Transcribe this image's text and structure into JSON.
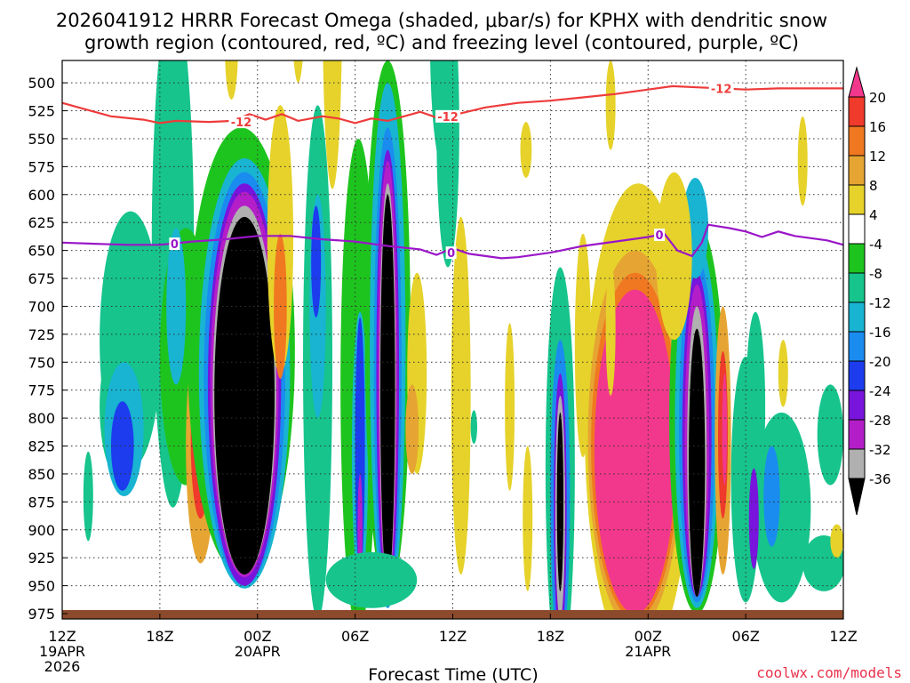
{
  "title_line1": "2026041912 HRRR Forecast Omega (shaded, μbar/s) for KPHX with dendritic snow",
  "title_line2": "growth region (contoured, red, ºC) and freezing level (contoured, purple, ºC)",
  "xlabel": "Forecast Time (UTC)",
  "credit": "coolwx.com/models",
  "colors": {
    "dgz": "#ee3b3b",
    "freezing": "#9a16c8",
    "ground": "#8b4a2b"
  },
  "chart_data": {
    "type": "heatmap",
    "x_unit": "forecast hour",
    "x_range": [
      0,
      48
    ],
    "y_unit": "hPa",
    "y_range": [
      975,
      480
    ],
    "y_ticks": [
      500,
      525,
      550,
      575,
      600,
      625,
      650,
      675,
      700,
      725,
      750,
      775,
      800,
      825,
      850,
      875,
      900,
      925,
      950,
      975
    ],
    "x_ticks": [
      {
        "h": 0,
        "l1": "12Z",
        "l2": "19APR",
        "l3": "2026"
      },
      {
        "h": 6,
        "l1": "18Z",
        "l2": "",
        "l3": ""
      },
      {
        "h": 12,
        "l1": "00Z",
        "l2": "20APR",
        "l3": ""
      },
      {
        "h": 18,
        "l1": "06Z",
        "l2": "",
        "l3": ""
      },
      {
        "h": 24,
        "l1": "12Z",
        "l2": "",
        "l3": ""
      },
      {
        "h": 30,
        "l1": "18Z",
        "l2": "",
        "l3": ""
      },
      {
        "h": 36,
        "l1": "00Z",
        "l2": "21APR",
        "l3": ""
      },
      {
        "h": 42,
        "l1": "06Z",
        "l2": "",
        "l3": ""
      },
      {
        "h": 48,
        "l1": "12Z",
        "l2": "",
        "l3": ""
      }
    ],
    "colorbar": {
      "labels": [
        "20",
        "16",
        "12",
        "8",
        "4",
        "-4",
        "-8",
        "-12",
        "-16",
        "-20",
        "-24",
        "-28",
        "-32",
        "-36"
      ],
      "colors": [
        "#f2388c",
        "#ef3a2c",
        "#f07820",
        "#e6a532",
        "#e6d22a",
        "#ffffff",
        "#1ec41e",
        "#16c48c",
        "#18b4d2",
        "#1a8cf0",
        "#1c3cee",
        "#7814dc",
        "#b41ec8",
        "#b0b0b0",
        "#000000"
      ]
    },
    "dgz_contour": {
      "label": "-12",
      "points": [
        [
          0,
          518
        ],
        [
          1.5,
          524
        ],
        [
          3,
          530
        ],
        [
          5,
          533
        ],
        [
          6,
          536
        ],
        [
          7,
          534
        ],
        [
          9,
          535
        ],
        [
          10.5,
          534
        ],
        [
          11.5,
          528
        ],
        [
          12.5,
          533
        ],
        [
          13.5,
          528
        ],
        [
          14.5,
          534
        ],
        [
          16,
          530
        ],
        [
          17,
          532
        ],
        [
          18,
          536
        ],
        [
          19,
          532
        ],
        [
          20,
          534
        ],
        [
          21,
          530
        ],
        [
          22,
          526
        ],
        [
          23,
          531
        ],
        [
          24,
          529
        ],
        [
          26,
          522
        ],
        [
          28,
          518
        ],
        [
          30,
          516
        ],
        [
          32,
          513
        ],
        [
          34,
          510
        ],
        [
          36,
          506
        ],
        [
          37.5,
          503
        ],
        [
          39,
          504
        ],
        [
          40.5,
          505
        ],
        [
          42,
          506
        ],
        [
          44,
          505
        ],
        [
          46,
          505
        ],
        [
          48,
          505
        ]
      ],
      "label_positions": [
        [
          11,
          535
        ],
        [
          23.7,
          530
        ],
        [
          40.5,
          505
        ]
      ]
    },
    "freezing_contour": {
      "label": "0",
      "points": [
        [
          0,
          643
        ],
        [
          2,
          644
        ],
        [
          4,
          645
        ],
        [
          6,
          645
        ],
        [
          8,
          642
        ],
        [
          10,
          640
        ],
        [
          12,
          637
        ],
        [
          14,
          637
        ],
        [
          16,
          640
        ],
        [
          18,
          642
        ],
        [
          20,
          646
        ],
        [
          22,
          649
        ],
        [
          23,
          654
        ],
        [
          24,
          648
        ],
        [
          25,
          653
        ],
        [
          26,
          655
        ],
        [
          27,
          657
        ],
        [
          28,
          656
        ],
        [
          30,
          652
        ],
        [
          32,
          646
        ],
        [
          34,
          642
        ],
        [
          36,
          638
        ],
        [
          37,
          635
        ],
        [
          37.8,
          650
        ],
        [
          38.7,
          655
        ],
        [
          39.3,
          643
        ],
        [
          39.7,
          627
        ],
        [
          41,
          630
        ],
        [
          42,
          633
        ],
        [
          43,
          638
        ],
        [
          44,
          633
        ],
        [
          45,
          637
        ],
        [
          46,
          639
        ],
        [
          47,
          641
        ],
        [
          48,
          645
        ]
      ],
      "label_positions": [
        [
          6.9,
          644
        ],
        [
          23.9,
          652
        ],
        [
          36.7,
          636
        ]
      ]
    },
    "cells": [
      {
        "h": 4.2,
        "p": 730,
        "w": 1.9,
        "d": 230,
        "v": -8
      },
      {
        "h": 3.6,
        "p": 790,
        "w": 1.3,
        "d": 130,
        "v": -10
      },
      {
        "h": 6.8,
        "p": 650,
        "w": 1.3,
        "d": 460,
        "v": -8
      },
      {
        "h": 7.6,
        "p": 745,
        "w": 1.6,
        "d": 230,
        "v": -6
      },
      {
        "h": 3.8,
        "p": 810,
        "w": 1.2,
        "d": 120,
        "v": -14
      },
      {
        "h": 3.7,
        "p": 825,
        "w": 0.7,
        "d": 80,
        "v": -20
      },
      {
        "h": 7.0,
        "p": 700,
        "w": 0.6,
        "d": 140,
        "v": -14
      },
      {
        "h": 8.5,
        "p": 825,
        "w": 0.9,
        "d": 210,
        "v": 10
      },
      {
        "h": 8.5,
        "p": 820,
        "w": 0.6,
        "d": 140,
        "v": 16
      },
      {
        "h": 8.6,
        "p": 815,
        "w": 0.3,
        "d": 90,
        "v": 20
      },
      {
        "h": 11.0,
        "p": 740,
        "w": 3.3,
        "d": 400,
        "v": -6
      },
      {
        "h": 11.2,
        "p": 760,
        "w": 2.8,
        "d": 385,
        "v": -12
      },
      {
        "h": 11.2,
        "p": 765,
        "w": 2.5,
        "d": 370,
        "v": -18
      },
      {
        "h": 11.2,
        "p": 770,
        "w": 2.25,
        "d": 360,
        "v": -24
      },
      {
        "h": 11.2,
        "p": 770,
        "w": 2.1,
        "d": 345,
        "v": -30
      },
      {
        "h": 11.2,
        "p": 775,
        "w": 1.95,
        "d": 330,
        "v": -34
      },
      {
        "h": 11.2,
        "p": 780,
        "w": 1.85,
        "d": 320,
        "v": -40
      },
      {
        "h": 13.4,
        "p": 640,
        "w": 0.8,
        "d": 240,
        "v": 6
      },
      {
        "h": 13.4,
        "p": 700,
        "w": 0.4,
        "d": 130,
        "v": 12
      },
      {
        "h": 14.5,
        "p": 380,
        "w": 0.5,
        "d": 240,
        "v": 5
      },
      {
        "h": 10.4,
        "p": 470,
        "w": 0.4,
        "d": 90,
        "v": 5
      },
      {
        "h": 15.7,
        "p": 750,
        "w": 0.9,
        "d": 460,
        "v": -8
      },
      {
        "h": 15.7,
        "p": 700,
        "w": 0.5,
        "d": 200,
        "v": -14
      },
      {
        "h": 15.6,
        "p": 660,
        "w": 0.3,
        "d": 100,
        "v": -20
      },
      {
        "h": 16.6,
        "p": 430,
        "w": 0.6,
        "d": 330,
        "v": 5
      },
      {
        "h": 18.2,
        "p": 770,
        "w": 1.1,
        "d": 440,
        "v": -6
      },
      {
        "h": 18.3,
        "p": 830,
        "w": 0.5,
        "d": 250,
        "v": -14
      },
      {
        "h": 18.3,
        "p": 825,
        "w": 0.3,
        "d": 230,
        "v": -22
      },
      {
        "h": 18.3,
        "p": 900,
        "w": 0.15,
        "d": 100,
        "v": -30
      },
      {
        "h": 20.0,
        "p": 720,
        "w": 1.4,
        "d": 480,
        "v": -6
      },
      {
        "h": 20.0,
        "p": 735,
        "w": 1.1,
        "d": 470,
        "v": -12
      },
      {
        "h": 20.0,
        "p": 755,
        "w": 0.85,
        "d": 430,
        "v": -18
      },
      {
        "h": 20.0,
        "p": 760,
        "w": 0.7,
        "d": 400,
        "v": -24
      },
      {
        "h": 20.0,
        "p": 760,
        "w": 0.6,
        "d": 380,
        "v": -30
      },
      {
        "h": 20.0,
        "p": 770,
        "w": 0.5,
        "d": 360,
        "v": -34
      },
      {
        "h": 20.0,
        "p": 775,
        "w": 0.45,
        "d": 350,
        "v": -40
      },
      {
        "h": 19.0,
        "p": 945,
        "w": 2.8,
        "d": 50,
        "v": -8
      },
      {
        "h": 20.6,
        "p": 260,
        "w": 0.5,
        "d": 110,
        "v": 5
      },
      {
        "h": 21.8,
        "p": 760,
        "w": 0.6,
        "d": 180,
        "v": 6
      },
      {
        "h": 21.5,
        "p": 810,
        "w": 0.4,
        "d": 80,
        "v": 10
      },
      {
        "h": 23.4,
        "p": 460,
        "w": 0.8,
        "d": 230,
        "v": -8
      },
      {
        "h": 23.7,
        "p": 540,
        "w": 0.7,
        "d": 250,
        "v": -10
      },
      {
        "h": 24.5,
        "p": 780,
        "w": 0.6,
        "d": 320,
        "v": 6
      },
      {
        "h": 28.5,
        "p": 560,
        "w": 0.35,
        "d": 50,
        "v": 5
      },
      {
        "h": 27.5,
        "p": 790,
        "w": 0.3,
        "d": 150,
        "v": 5
      },
      {
        "h": 28.6,
        "p": 890,
        "w": 0.3,
        "d": 130,
        "v": 5
      },
      {
        "h": 25.3,
        "p": 808,
        "w": 0.2,
        "d": 30,
        "v": -8
      },
      {
        "h": 30.6,
        "p": 845,
        "w": 0.9,
        "d": 360,
        "v": -8
      },
      {
        "h": 30.6,
        "p": 870,
        "w": 0.6,
        "d": 280,
        "v": -16
      },
      {
        "h": 30.6,
        "p": 880,
        "w": 0.4,
        "d": 240,
        "v": -26
      },
      {
        "h": 30.6,
        "p": 880,
        "w": 0.3,
        "d": 200,
        "v": -32
      },
      {
        "h": 30.6,
        "p": 875,
        "w": 0.2,
        "d": 160,
        "v": -40
      },
      {
        "h": 32.0,
        "p": 735,
        "w": 0.5,
        "d": 200,
        "v": 5
      },
      {
        "h": 35.4,
        "p": 805,
        "w": 3.3,
        "d": 430,
        "v": 5
      },
      {
        "h": 35.2,
        "p": 820,
        "w": 2.9,
        "d": 340,
        "v": 8
      },
      {
        "h": 35.2,
        "p": 825,
        "w": 2.7,
        "d": 310,
        "v": 14
      },
      {
        "h": 35.2,
        "p": 830,
        "w": 2.5,
        "d": 290,
        "v": 20
      },
      {
        "h": 35.6,
        "p": 810,
        "w": 1.1,
        "d": 140,
        "v": 22
      },
      {
        "h": 39.0,
        "p": 800,
        "w": 1.7,
        "d": 350,
        "v": -6
      },
      {
        "h": 39.0,
        "p": 805,
        "w": 1.35,
        "d": 330,
        "v": -12
      },
      {
        "h": 39.0,
        "p": 810,
        "w": 1.1,
        "d": 310,
        "v": -18
      },
      {
        "h": 39.0,
        "p": 815,
        "w": 0.9,
        "d": 290,
        "v": -24
      },
      {
        "h": 39.0,
        "p": 818,
        "w": 0.75,
        "d": 275,
        "v": -30
      },
      {
        "h": 39.0,
        "p": 830,
        "w": 0.6,
        "d": 260,
        "v": -34
      },
      {
        "h": 39.0,
        "p": 840,
        "w": 0.5,
        "d": 240,
        "v": -40
      },
      {
        "h": 40.6,
        "p": 820,
        "w": 0.5,
        "d": 240,
        "v": 8
      },
      {
        "h": 40.6,
        "p": 815,
        "w": 0.3,
        "d": 150,
        "v": 16
      },
      {
        "h": 40.7,
        "p": 810,
        "w": 0.15,
        "d": 100,
        "v": 20
      },
      {
        "h": 38.9,
        "p": 630,
        "w": 0.8,
        "d": 90,
        "v": -14
      },
      {
        "h": 37.6,
        "p": 655,
        "w": 1.1,
        "d": 150,
        "v": 5
      },
      {
        "h": 42.0,
        "p": 855,
        "w": 0.9,
        "d": 220,
        "v": -8
      },
      {
        "h": 42.6,
        "p": 790,
        "w": 0.6,
        "d": 170,
        "v": -8
      },
      {
        "h": 44.2,
        "p": 880,
        "w": 1.8,
        "d": 170,
        "v": -8
      },
      {
        "h": 43.6,
        "p": 870,
        "w": 0.5,
        "d": 90,
        "v": -16
      },
      {
        "h": 42.5,
        "p": 890,
        "w": 0.3,
        "d": 90,
        "v": -26
      },
      {
        "h": 44.3,
        "p": 760,
        "w": 0.3,
        "d": 60,
        "v": 5
      },
      {
        "h": 46.8,
        "p": 930,
        "w": 1.3,
        "d": 50,
        "v": -8
      },
      {
        "h": 47.2,
        "p": 815,
        "w": 0.8,
        "d": 90,
        "v": -8
      },
      {
        "h": 47.6,
        "p": 910,
        "w": 0.4,
        "d": 30,
        "v": 5
      },
      {
        "h": 33.7,
        "p": 720,
        "w": 0.3,
        "d": 120,
        "v": 5
      },
      {
        "h": 33.7,
        "p": 520,
        "w": 0.3,
        "d": 80,
        "v": 5
      },
      {
        "h": 45.5,
        "p": 570,
        "w": 0.3,
        "d": 80,
        "v": 5
      },
      {
        "h": 1.6,
        "p": 870,
        "w": 0.3,
        "d": 80,
        "v": -8
      }
    ]
  }
}
